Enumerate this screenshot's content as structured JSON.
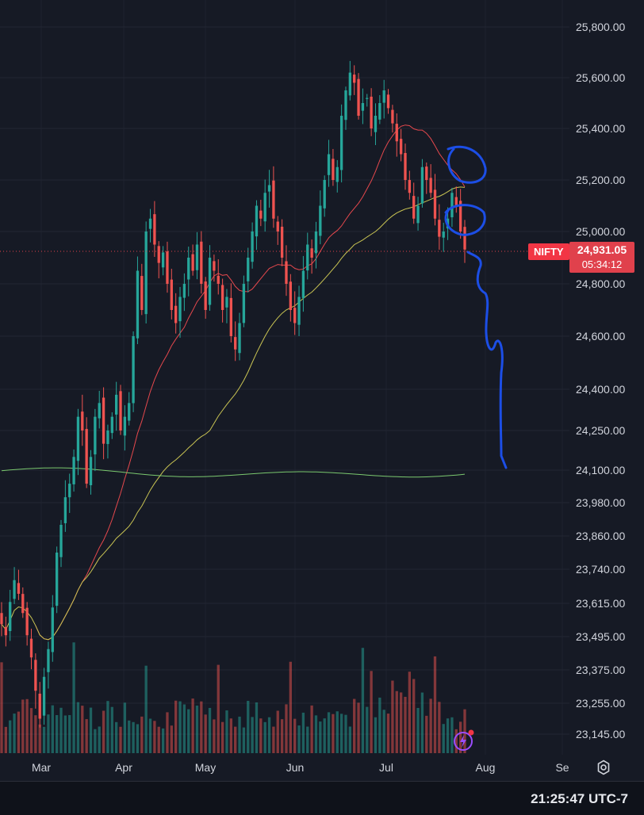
{
  "chart_data": {
    "type": "candlestick",
    "symbol": "NIFTY",
    "last_price": "24,931.05",
    "countdown": "05:34:12",
    "time_axis": [
      "Mar",
      "Apr",
      "May",
      "Jun",
      "Jul",
      "Aug",
      "Se"
    ],
    "price_axis": [
      "25,800.00",
      "25,600.00",
      "25,400.00",
      "25,200.00",
      "25,000.00",
      "24,800.00",
      "24,600.00",
      "24,400.00",
      "24,250.00",
      "24,100.00",
      "23,980.00",
      "23,860.00",
      "23,740.00",
      "23,615.00",
      "23,495.00",
      "23,375.00",
      "23,255.00",
      "23,145.00"
    ],
    "clock": "21:25:47 UTC-7",
    "colors": {
      "background": "#161a25",
      "up": "#26a69a",
      "down": "#ef5350",
      "ma_fast": "#e5484d",
      "ma_mid": "#c9c453",
      "ma_slow": "#7bc96f",
      "annotation": "#1c4ee6",
      "price_tag": "#e0414c"
    },
    "icons": [
      "gear-icon",
      "lightning-icon"
    ]
  }
}
